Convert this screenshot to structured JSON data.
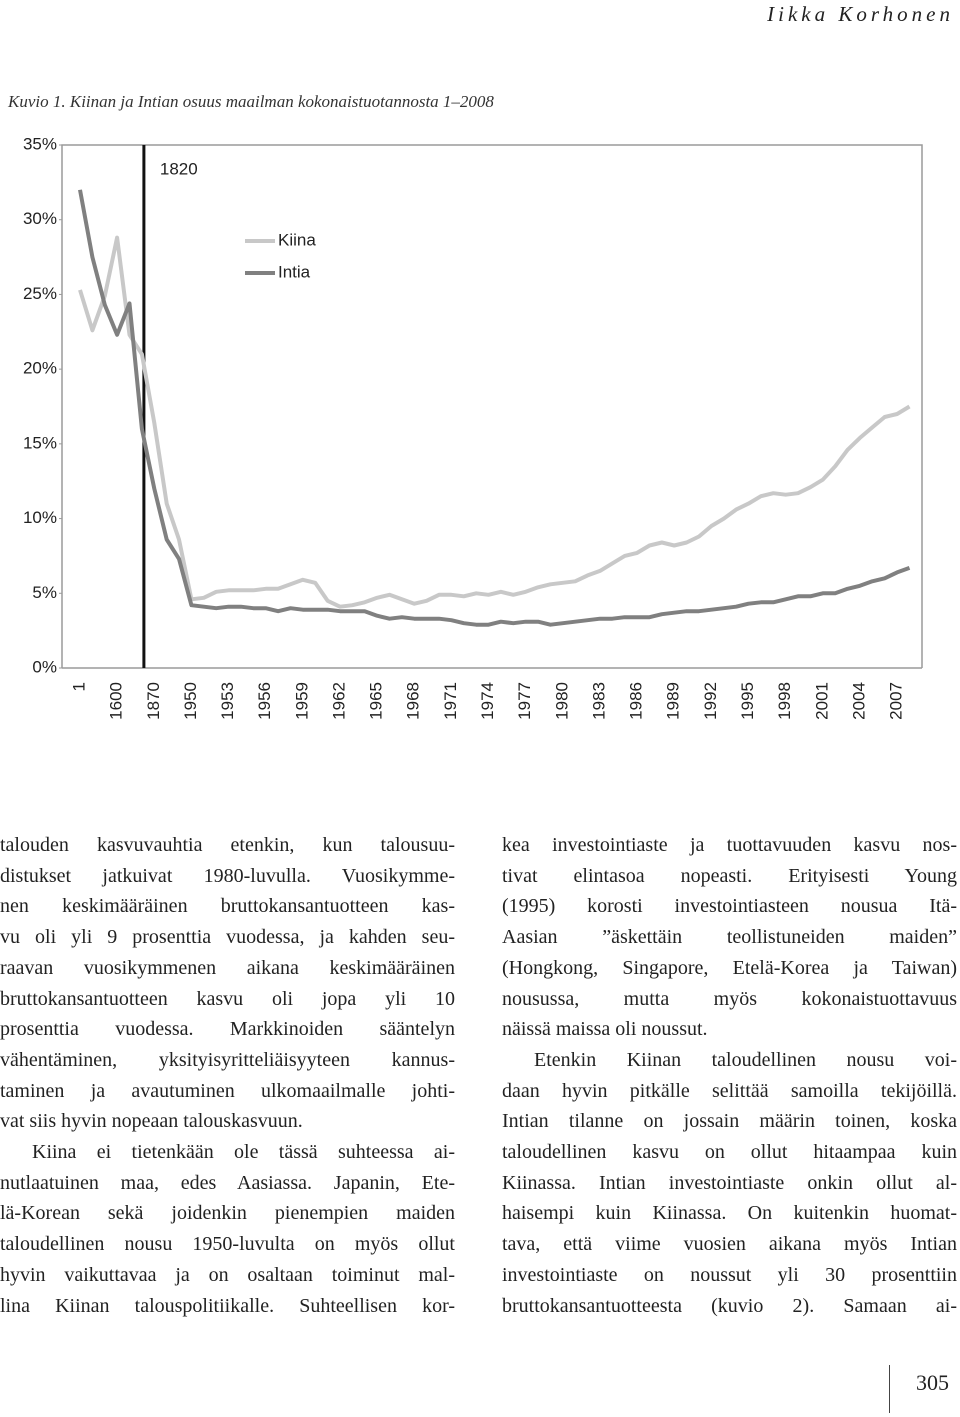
{
  "header": {
    "author": "Iikka Korhonen"
  },
  "caption": "Kuvio 1. Kiinan ja Intian osuus maailman kokonaistuotannosta 1–2008",
  "chart_data": {
    "type": "line",
    "categories": [
      "1",
      null,
      null,
      "1600",
      null,
      null,
      "1870",
      null,
      null,
      "1950",
      null,
      null,
      "1953",
      null,
      null,
      "1956",
      null,
      null,
      "1959",
      null,
      null,
      "1962",
      null,
      null,
      "1965",
      null,
      null,
      "1968",
      null,
      null,
      "1971",
      null,
      null,
      "1974",
      null,
      null,
      "1977",
      null,
      null,
      "1980",
      null,
      null,
      "1983",
      null,
      null,
      "1986",
      null,
      null,
      "1989",
      null,
      null,
      "1992",
      null,
      null,
      "1995",
      null,
      null,
      "1998",
      null,
      null,
      "2001",
      null,
      null,
      "2004",
      null,
      null,
      "2007",
      null
    ],
    "series": [
      {
        "name": "Kiina",
        "color": "#c8c8c8",
        "values": [
          25.3,
          22.6,
          24.9,
          28.8,
          22.3,
          21.0,
          16.4,
          11.0,
          8.6,
          4.6,
          4.7,
          5.1,
          5.2,
          5.2,
          5.2,
          5.3,
          5.3,
          5.6,
          5.9,
          5.7,
          4.5,
          4.1,
          4.2,
          4.4,
          4.7,
          4.9,
          4.6,
          4.3,
          4.5,
          4.9,
          4.9,
          4.8,
          5.0,
          4.9,
          5.1,
          4.9,
          5.1,
          5.4,
          5.6,
          5.7,
          5.8,
          6.2,
          6.5,
          7.0,
          7.5,
          7.7,
          8.2,
          8.4,
          8.2,
          8.4,
          8.8,
          9.5,
          10.0,
          10.6,
          11.0,
          11.5,
          11.7,
          11.6,
          11.7,
          12.1,
          12.6,
          13.5,
          14.6,
          15.4,
          16.1,
          16.8,
          17.0,
          17.5
        ]
      },
      {
        "name": "Intia",
        "color": "#808080",
        "values": [
          32.0,
          27.5,
          24.3,
          22.3,
          24.4,
          16.0,
          12.0,
          8.6,
          7.3,
          4.2,
          4.1,
          4.0,
          4.1,
          4.1,
          4.0,
          4.0,
          3.8,
          4.0,
          3.9,
          3.9,
          3.9,
          3.8,
          3.8,
          3.8,
          3.5,
          3.3,
          3.4,
          3.3,
          3.3,
          3.3,
          3.2,
          3.0,
          2.9,
          2.9,
          3.1,
          3.0,
          3.1,
          3.1,
          2.9,
          3.0,
          3.1,
          3.2,
          3.3,
          3.3,
          3.4,
          3.4,
          3.4,
          3.6,
          3.7,
          3.8,
          3.8,
          3.9,
          4.0,
          4.1,
          4.3,
          4.4,
          4.4,
          4.6,
          4.8,
          4.8,
          5.0,
          5.0,
          5.3,
          5.5,
          5.8,
          6.0,
          6.4,
          6.7
        ]
      }
    ],
    "ylim": [
      0,
      35
    ],
    "yticks": [
      {
        "value": 0,
        "label": "0%"
      },
      {
        "value": 5,
        "label": "5%"
      },
      {
        "value": 10,
        "label": "10%"
      },
      {
        "value": 15,
        "label": "15%"
      },
      {
        "value": 20,
        "label": "20%"
      },
      {
        "value": 25,
        "label": "25%"
      },
      {
        "value": 30,
        "label": "30%"
      },
      {
        "value": 35,
        "label": "35%"
      }
    ],
    "annotation": "1820",
    "legend": "upper left",
    "grid": false
  },
  "text": {
    "left": [
      [
        "talouden kasvuvauhtia etenkin, kun talousuu-",
        "distukset jatkuivat 1980-luvulla. Vuosikymme-",
        "nen keskimääräinen bruttokansantuotteen kas-",
        "vu oli yli 9 prosenttia vuodessa, ja kahden seu-",
        "raavan vuosikymmenen aikana keskimääräinen",
        "bruttokansantuotteen kasvu oli jopa yli 10",
        "prosenttia vuodessa. Markkinoiden sääntelyn",
        "vähentäminen, yksityisyritteliäisyyteen kannus-",
        "taminen ja avautuminen ulkomaailmalle johti-",
        "vat siis hyvin nopeaan talouskasvuun."
      ],
      [
        "Kiina ei tietenkään ole tässä suhteessa ai-",
        "nutlaatuinen maa, edes Aasiassa. Japanin, Ete-",
        "lä-Korean sekä joidenkin pienempien maiden",
        "taloudellinen nousu 1950-luvulta on myös ollut",
        "hyvin vaikuttavaa ja on osaltaan toiminut mal-",
        "lina Kiinan talouspolitiikalle. Suhteellisen kor-"
      ]
    ],
    "right": [
      [
        "kea investointiaste ja tuottavuuden kasvu nos-",
        "tivat elintasoa nopeasti. Erityisesti Young",
        "(1995) korosti investointiasteen nousua Itä-",
        "Aasian ”äskettäin teollistuneiden maiden”",
        "(Hongkong, Singapore, Etelä-Korea ja Taiwan)",
        "nousussa, mutta myös kokonaistuottavuus",
        "näissä maissa oli noussut."
      ],
      [
        "Etenkin Kiinan taloudellinen nousu voi-",
        "daan hyvin pitkälle selittää samoilla tekijöillä.",
        "Intian tilanne on jossain määrin toinen, koska",
        "taloudellinen kasvu on ollut hitaampaa kuin",
        "Kiinassa. Intian investointiaste onkin ollut al-",
        "haisempi kuin Kiinassa. On kuitenkin huomat-",
        "tava, että viime vuosien aikana myös Intian",
        "investointiaste on noussut yli 30 prosenttiin",
        "bruttokansantuotteesta (kuvio 2). Samaan ai-"
      ]
    ]
  },
  "page_number": "305"
}
